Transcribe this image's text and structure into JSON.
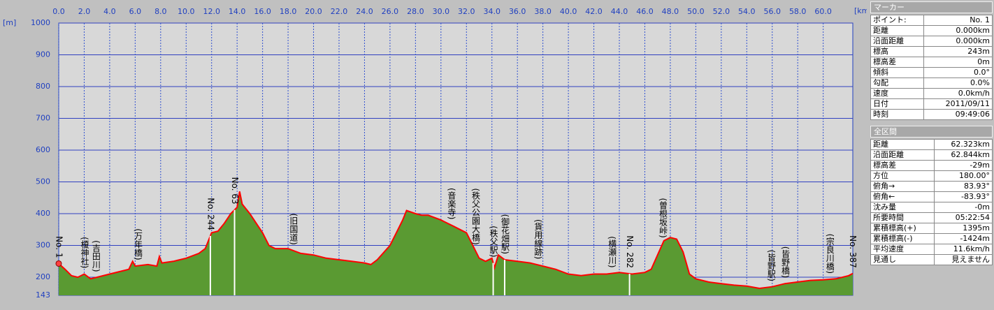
{
  "chart_data": {
    "type": "area",
    "x_unit": "[km]",
    "y_unit": "[m]",
    "xlim": [
      0,
      62.323
    ],
    "ylim": [
      143,
      1000
    ],
    "xticks": [
      {
        "value": 0,
        "label": "0.0"
      },
      {
        "value": 2,
        "label": "2.0"
      },
      {
        "value": 4,
        "label": "4.0"
      },
      {
        "value": 6,
        "label": "6.0"
      },
      {
        "value": 8,
        "label": "8.0"
      },
      {
        "value": 10,
        "label": "10.0"
      },
      {
        "value": 12,
        "label": "12.0"
      },
      {
        "value": 14,
        "label": "14.0"
      },
      {
        "value": 16,
        "label": "16.0"
      },
      {
        "value": 18,
        "label": "18.0"
      },
      {
        "value": 20,
        "label": "20.0"
      },
      {
        "value": 22,
        "label": "22.0"
      },
      {
        "value": 24,
        "label": "24.0"
      },
      {
        "value": 26,
        "label": "26.0"
      },
      {
        "value": 28,
        "label": "28.0"
      },
      {
        "value": 30,
        "label": "30.0"
      },
      {
        "value": 32,
        "label": "32.0"
      },
      {
        "value": 34,
        "label": "34.0"
      },
      {
        "value": 36,
        "label": "36.0"
      },
      {
        "value": 38,
        "label": "38.0"
      },
      {
        "value": 40,
        "label": "40.0"
      },
      {
        "value": 42,
        "label": "42.0"
      },
      {
        "value": 44,
        "label": "44.0"
      },
      {
        "value": 46,
        "label": "46.0"
      },
      {
        "value": 48,
        "label": "48.0"
      },
      {
        "value": 50,
        "label": "50.0"
      },
      {
        "value": 52,
        "label": "52.0"
      },
      {
        "value": 54,
        "label": "54.0"
      },
      {
        "value": 56,
        "label": "56.0"
      },
      {
        "value": 58,
        "label": "58.0"
      },
      {
        "value": 60,
        "label": "60.0"
      }
    ],
    "yticks": [
      143,
      200,
      300,
      400,
      500,
      600,
      700,
      800,
      900,
      1000
    ],
    "grid": true,
    "line_color": "#ff0000",
    "fill_color": "#5a9a32",
    "x": [
      0,
      0.5,
      1,
      1.5,
      2,
      2.5,
      3,
      4,
      5,
      5.5,
      5.8,
      6,
      7,
      7.7,
      7.9,
      8.1,
      9,
      10,
      11,
      11.5,
      12,
      12.5,
      13,
      13.5,
      14,
      14.2,
      14.4,
      15,
      16,
      16.5,
      17,
      18,
      19,
      20,
      21,
      22,
      23,
      24,
      24.5,
      25,
      26,
      26.5,
      27,
      27.3,
      28,
      28.5,
      29,
      30,
      31,
      31.5,
      32,
      32.5,
      33,
      33.5,
      34,
      34.2,
      34.5,
      35,
      36,
      37,
      38,
      39,
      40,
      41,
      42,
      43,
      44,
      45,
      46,
      46.5,
      47,
      47.5,
      48,
      48.5,
      49,
      49.5,
      50,
      51,
      52,
      53,
      54,
      55,
      56,
      57,
      58,
      59,
      60,
      61,
      62,
      62.323
    ],
    "values": [
      243,
      225,
      205,
      200,
      210,
      195,
      200,
      210,
      220,
      225,
      250,
      235,
      240,
      235,
      265,
      245,
      250,
      260,
      275,
      290,
      340,
      345,
      370,
      400,
      420,
      470,
      430,
      400,
      340,
      300,
      290,
      290,
      275,
      270,
      260,
      255,
      250,
      245,
      240,
      255,
      300,
      340,
      380,
      410,
      400,
      395,
      395,
      380,
      360,
      350,
      340,
      300,
      260,
      250,
      260,
      230,
      270,
      255,
      250,
      245,
      235,
      225,
      210,
      205,
      210,
      210,
      215,
      210,
      215,
      225,
      270,
      315,
      325,
      320,
      280,
      210,
      195,
      185,
      180,
      175,
      172,
      165,
      170,
      180,
      185,
      190,
      192,
      195,
      205,
      212
    ],
    "annotations": [
      {
        "x": 0,
        "label": "No. 1"
      },
      {
        "x": 2.0,
        "label": "(榎神社)"
      },
      {
        "x": 2.9,
        "label": "(吉田川)"
      },
      {
        "x": 6.2,
        "label": "(万年橋)"
      },
      {
        "x": 11.9,
        "label": "No. 244",
        "line": true
      },
      {
        "x": 13.8,
        "label": "No. 63",
        "line": true
      },
      {
        "x": 18.4,
        "label": "(旧国道)"
      },
      {
        "x": 30.8,
        "label": "(音楽寺)"
      },
      {
        "x": 32.7,
        "label": "(秩父公園大橋)"
      },
      {
        "x": 34.1,
        "label": "(秩父駅)",
        "line": true
      },
      {
        "x": 35.0,
        "label": "(御花畑駅)",
        "line": true
      },
      {
        "x": 37.6,
        "label": "(貨用線跡)"
      },
      {
        "x": 43.4,
        "label": "(横瀬川)"
      },
      {
        "x": 44.8,
        "label": "No. 282",
        "line": true
      },
      {
        "x": 47.4,
        "label": "(曽根坂峠)"
      },
      {
        "x": 55.9,
        "label": "(皆野駅)"
      },
      {
        "x": 57.0,
        "label": "(皆野橋)"
      },
      {
        "x": 60.5,
        "label": "(宗良川橋)"
      },
      {
        "x": 62.3,
        "label": "No. 387"
      }
    ]
  },
  "marker": {
    "title": "マーカー",
    "rows": [
      [
        "ポイント:",
        "No. 1"
      ],
      [
        "距離",
        "0.000km"
      ],
      [
        "沿面距離",
        "0.000km"
      ],
      [
        "標高",
        "243m"
      ],
      [
        "標高差",
        "0m"
      ],
      [
        "傾斜",
        "0.0°"
      ],
      [
        "勾配",
        "0.0%"
      ],
      [
        "速度",
        "0.0km/h"
      ],
      [
        "日付",
        "2011/09/11"
      ],
      [
        "時刻",
        "09:49:06"
      ]
    ]
  },
  "total": {
    "title": "全区間",
    "rows": [
      [
        "距離",
        "62.323km"
      ],
      [
        "沿面距離",
        "62.844km"
      ],
      [
        "標高差",
        "-29m"
      ],
      [
        "方位",
        "180.00°"
      ],
      [
        "俯角→",
        "83.93°"
      ],
      [
        "俯角←",
        "-83.93°"
      ],
      [
        "沈み量",
        "-0m"
      ],
      [
        "所要時間",
        "05:22:54"
      ],
      [
        "累積標高(+)",
        "1395m"
      ],
      [
        "累積標高(-)",
        "-1424m"
      ],
      [
        "平均速度",
        "11.6km/h"
      ],
      [
        "見通し",
        "見えません"
      ]
    ]
  }
}
